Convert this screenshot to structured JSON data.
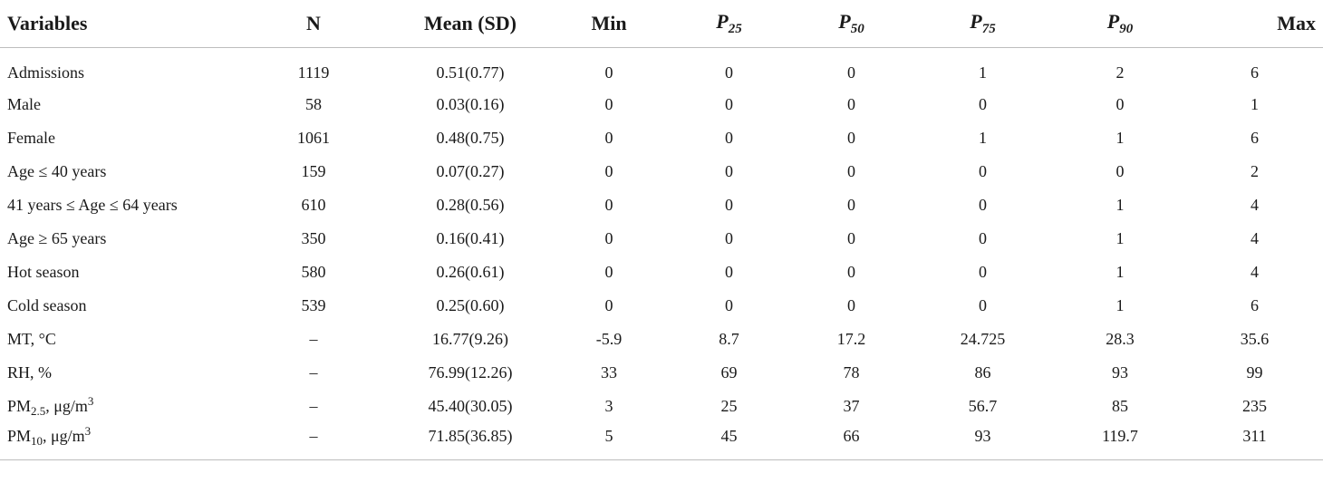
{
  "table": {
    "headers": {
      "variables": "Variables",
      "n": "N",
      "mean_sd": "Mean (SD)",
      "min": "Min",
      "p25": {
        "letter": "P",
        "sub": "25"
      },
      "p50": {
        "letter": "P",
        "sub": "50"
      },
      "p75": {
        "letter": "P",
        "sub": "75"
      },
      "p90": {
        "letter": "P",
        "sub": "90"
      },
      "max": "Max"
    },
    "rows": [
      {
        "label": "Admissions",
        "n": "1119",
        "mean_sd": "0.51(0.77)",
        "min": "0",
        "p25": "0",
        "p50": "0",
        "p75": "1",
        "p90": "2",
        "max": "6"
      },
      {
        "label": "Male",
        "n": "58",
        "mean_sd": "0.03(0.16)",
        "min": "0",
        "p25": "0",
        "p50": "0",
        "p75": "0",
        "p90": "0",
        "max": "1"
      },
      {
        "label": "Female",
        "n": "1061",
        "mean_sd": "0.48(0.75)",
        "min": "0",
        "p25": "0",
        "p50": "0",
        "p75": "1",
        "p90": "1",
        "max": "6"
      },
      {
        "label": "Age ≤ 40 years",
        "n": "159",
        "mean_sd": "0.07(0.27)",
        "min": "0",
        "p25": "0",
        "p50": "0",
        "p75": "0",
        "p90": "0",
        "max": "2"
      },
      {
        "label": "41 years ≤ Age ≤ 64 years",
        "n": "610",
        "mean_sd": "0.28(0.56)",
        "min": "0",
        "p25": "0",
        "p50": "0",
        "p75": "0",
        "p90": "1",
        "max": "4"
      },
      {
        "label": "Age ≥ 65 years",
        "n": "350",
        "mean_sd": "0.16(0.41)",
        "min": "0",
        "p25": "0",
        "p50": "0",
        "p75": "0",
        "p90": "1",
        "max": "4"
      },
      {
        "label": "Hot season",
        "n": "580",
        "mean_sd": "0.26(0.61)",
        "min": "0",
        "p25": "0",
        "p50": "0",
        "p75": "0",
        "p90": "1",
        "max": "4"
      },
      {
        "label": "Cold season",
        "n": "539",
        "mean_sd": "0.25(0.60)",
        "min": "0",
        "p25": "0",
        "p50": "0",
        "p75": "0",
        "p90": "1",
        "max": "6"
      },
      {
        "label": "MT, °C",
        "n": "–",
        "mean_sd": "16.77(9.26)",
        "min": "-5.9",
        "p25": "8.7",
        "p50": "17.2",
        "p75": "24.725",
        "p90": "28.3",
        "max": "35.6"
      },
      {
        "label": "RH, %",
        "n": "–",
        "mean_sd": "76.99(12.26)",
        "min": "33",
        "p25": "69",
        "p50": "78",
        "p75": "86",
        "p90": "93",
        "max": "99"
      },
      {
        "label": "PM2.5, μg/m3",
        "label_parts": {
          "pre": "PM",
          "sub": "2.5",
          "mid": ", μg/m",
          "sup": "3"
        },
        "n": "–",
        "mean_sd": "45.40(30.05)",
        "min": "3",
        "p25": "25",
        "p50": "37",
        "p75": "56.7",
        "p90": "85",
        "max": "235"
      },
      {
        "label": "PM10, μg/m3",
        "label_parts": {
          "pre": "PM",
          "sub": "10",
          "mid": ", μg/m",
          "sup": "3"
        },
        "n": "–",
        "mean_sd": "71.85(36.85)",
        "min": "5",
        "p25": "45",
        "p50": "66",
        "p75": "93",
        "p90": "119.7",
        "max": "311"
      }
    ]
  }
}
